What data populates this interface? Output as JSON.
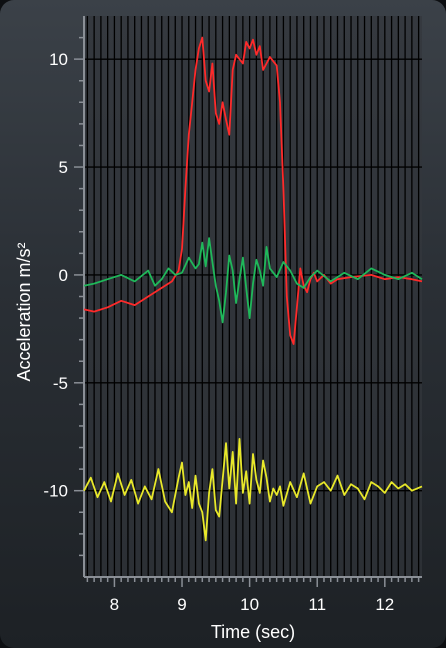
{
  "chart_data": {
    "type": "line",
    "xlabel": "Time (sec)",
    "ylabel": "Acceleration m/s²",
    "xlim": [
      7.55,
      12.55
    ],
    "ylim": [
      -14,
      12
    ],
    "x_ticks": [
      8,
      9,
      10,
      11,
      12
    ],
    "x_tick_labels": [
      "8",
      "9",
      "10",
      "11",
      "12"
    ],
    "y_ticks": [
      10,
      5,
      0,
      -5,
      -10
    ],
    "y_tick_labels": [
      "10",
      "5",
      "0",
      "-5",
      "-10"
    ],
    "grid": true,
    "series": [
      {
        "color": "#ff2a2a",
        "x": [
          7.55,
          7.7,
          7.9,
          8.1,
          8.3,
          8.5,
          8.7,
          8.85,
          8.95,
          9.0,
          9.05,
          9.1,
          9.15,
          9.2,
          9.25,
          9.3,
          9.35,
          9.4,
          9.45,
          9.5,
          9.55,
          9.6,
          9.65,
          9.7,
          9.75,
          9.8,
          9.9,
          9.95,
          10.0,
          10.05,
          10.1,
          10.15,
          10.2,
          10.25,
          10.3,
          10.35,
          10.4,
          10.45,
          10.5,
          10.55,
          10.6,
          10.65,
          10.7,
          10.75,
          10.8,
          10.85,
          10.9,
          10.95,
          11.0,
          11.1,
          11.2,
          11.3,
          11.5,
          11.8,
          12.0,
          12.2,
          12.4,
          12.55
        ],
        "y": [
          -1.6,
          -1.7,
          -1.5,
          -1.2,
          -1.4,
          -1.0,
          -0.6,
          -0.3,
          0.2,
          1.2,
          4.0,
          6.5,
          8.0,
          9.5,
          10.5,
          11.0,
          9.0,
          8.5,
          9.8,
          7.5,
          7.0,
          8.0,
          7.2,
          6.5,
          9.5,
          10.2,
          9.8,
          10.8,
          10.5,
          10.9,
          10.2,
          10.6,
          9.5,
          9.8,
          10.1,
          9.9,
          9.7,
          8.0,
          4.0,
          -1.0,
          -2.8,
          -3.2,
          -1.5,
          0.3,
          -0.5,
          -0.8,
          -0.2,
          0.1,
          -0.3,
          0.0,
          -0.4,
          -0.2,
          -0.1,
          0.0,
          -0.2,
          -0.1,
          -0.2,
          -0.3
        ]
      },
      {
        "color": "#1fb85a",
        "x": [
          7.55,
          7.7,
          7.9,
          8.1,
          8.3,
          8.5,
          8.6,
          8.7,
          8.8,
          8.9,
          9.0,
          9.1,
          9.2,
          9.25,
          9.3,
          9.35,
          9.4,
          9.45,
          9.5,
          9.55,
          9.6,
          9.65,
          9.7,
          9.75,
          9.8,
          9.85,
          9.9,
          9.95,
          10.0,
          10.05,
          10.1,
          10.15,
          10.2,
          10.25,
          10.3,
          10.4,
          10.5,
          10.6,
          10.7,
          10.8,
          10.9,
          11.0,
          11.2,
          11.4,
          11.6,
          11.8,
          12.0,
          12.2,
          12.4,
          12.55
        ],
        "y": [
          -0.5,
          -0.4,
          -0.2,
          0.0,
          -0.3,
          0.2,
          -0.5,
          -0.2,
          0.3,
          0.0,
          0.1,
          0.8,
          0.3,
          0.5,
          1.5,
          0.4,
          1.7,
          0.6,
          -0.5,
          -1.2,
          -2.2,
          -0.8,
          0.9,
          0.2,
          -1.3,
          -0.2,
          0.8,
          -0.6,
          -2.0,
          -0.4,
          0.7,
          0.2,
          -0.5,
          1.3,
          0.3,
          -0.1,
          0.6,
          0.2,
          -0.4,
          -0.6,
          -0.1,
          0.2,
          -0.3,
          0.1,
          -0.2,
          0.3,
          0.0,
          -0.2,
          0.1,
          -0.2
        ]
      },
      {
        "color": "#e8e82a",
        "x": [
          7.55,
          7.65,
          7.75,
          7.85,
          7.95,
          8.05,
          8.15,
          8.25,
          8.35,
          8.45,
          8.55,
          8.65,
          8.75,
          8.85,
          8.95,
          9.0,
          9.05,
          9.1,
          9.15,
          9.2,
          9.25,
          9.3,
          9.35,
          9.4,
          9.45,
          9.5,
          9.55,
          9.6,
          9.65,
          9.7,
          9.75,
          9.8,
          9.85,
          9.9,
          9.95,
          10.0,
          10.05,
          10.1,
          10.15,
          10.2,
          10.25,
          10.3,
          10.35,
          10.4,
          10.45,
          10.5,
          10.6,
          10.7,
          10.8,
          10.9,
          11.0,
          11.1,
          11.2,
          11.3,
          11.4,
          11.5,
          11.6,
          11.7,
          11.8,
          11.9,
          12.0,
          12.1,
          12.2,
          12.3,
          12.4,
          12.55
        ],
        "y": [
          -10.0,
          -9.4,
          -10.3,
          -9.6,
          -10.5,
          -9.2,
          -10.2,
          -9.5,
          -10.6,
          -9.8,
          -10.4,
          -9.0,
          -10.5,
          -11.0,
          -9.4,
          -8.7,
          -10.2,
          -9.6,
          -10.8,
          -9.3,
          -10.6,
          -11.0,
          -12.3,
          -10.1,
          -9.0,
          -10.9,
          -11.2,
          -9.5,
          -7.8,
          -9.9,
          -8.2,
          -10.6,
          -7.6,
          -10.1,
          -9.1,
          -10.6,
          -8.3,
          -9.5,
          -10.1,
          -8.6,
          -9.4,
          -10.5,
          -9.9,
          -10.2,
          -9.8,
          -10.7,
          -9.6,
          -10.3,
          -9.2,
          -10.6,
          -9.8,
          -9.6,
          -10.0,
          -9.3,
          -10.2,
          -9.7,
          -9.9,
          -10.4,
          -9.6,
          -9.8,
          -10.1,
          -9.6,
          -9.9,
          -9.7,
          -10.0,
          -9.8
        ]
      }
    ]
  }
}
